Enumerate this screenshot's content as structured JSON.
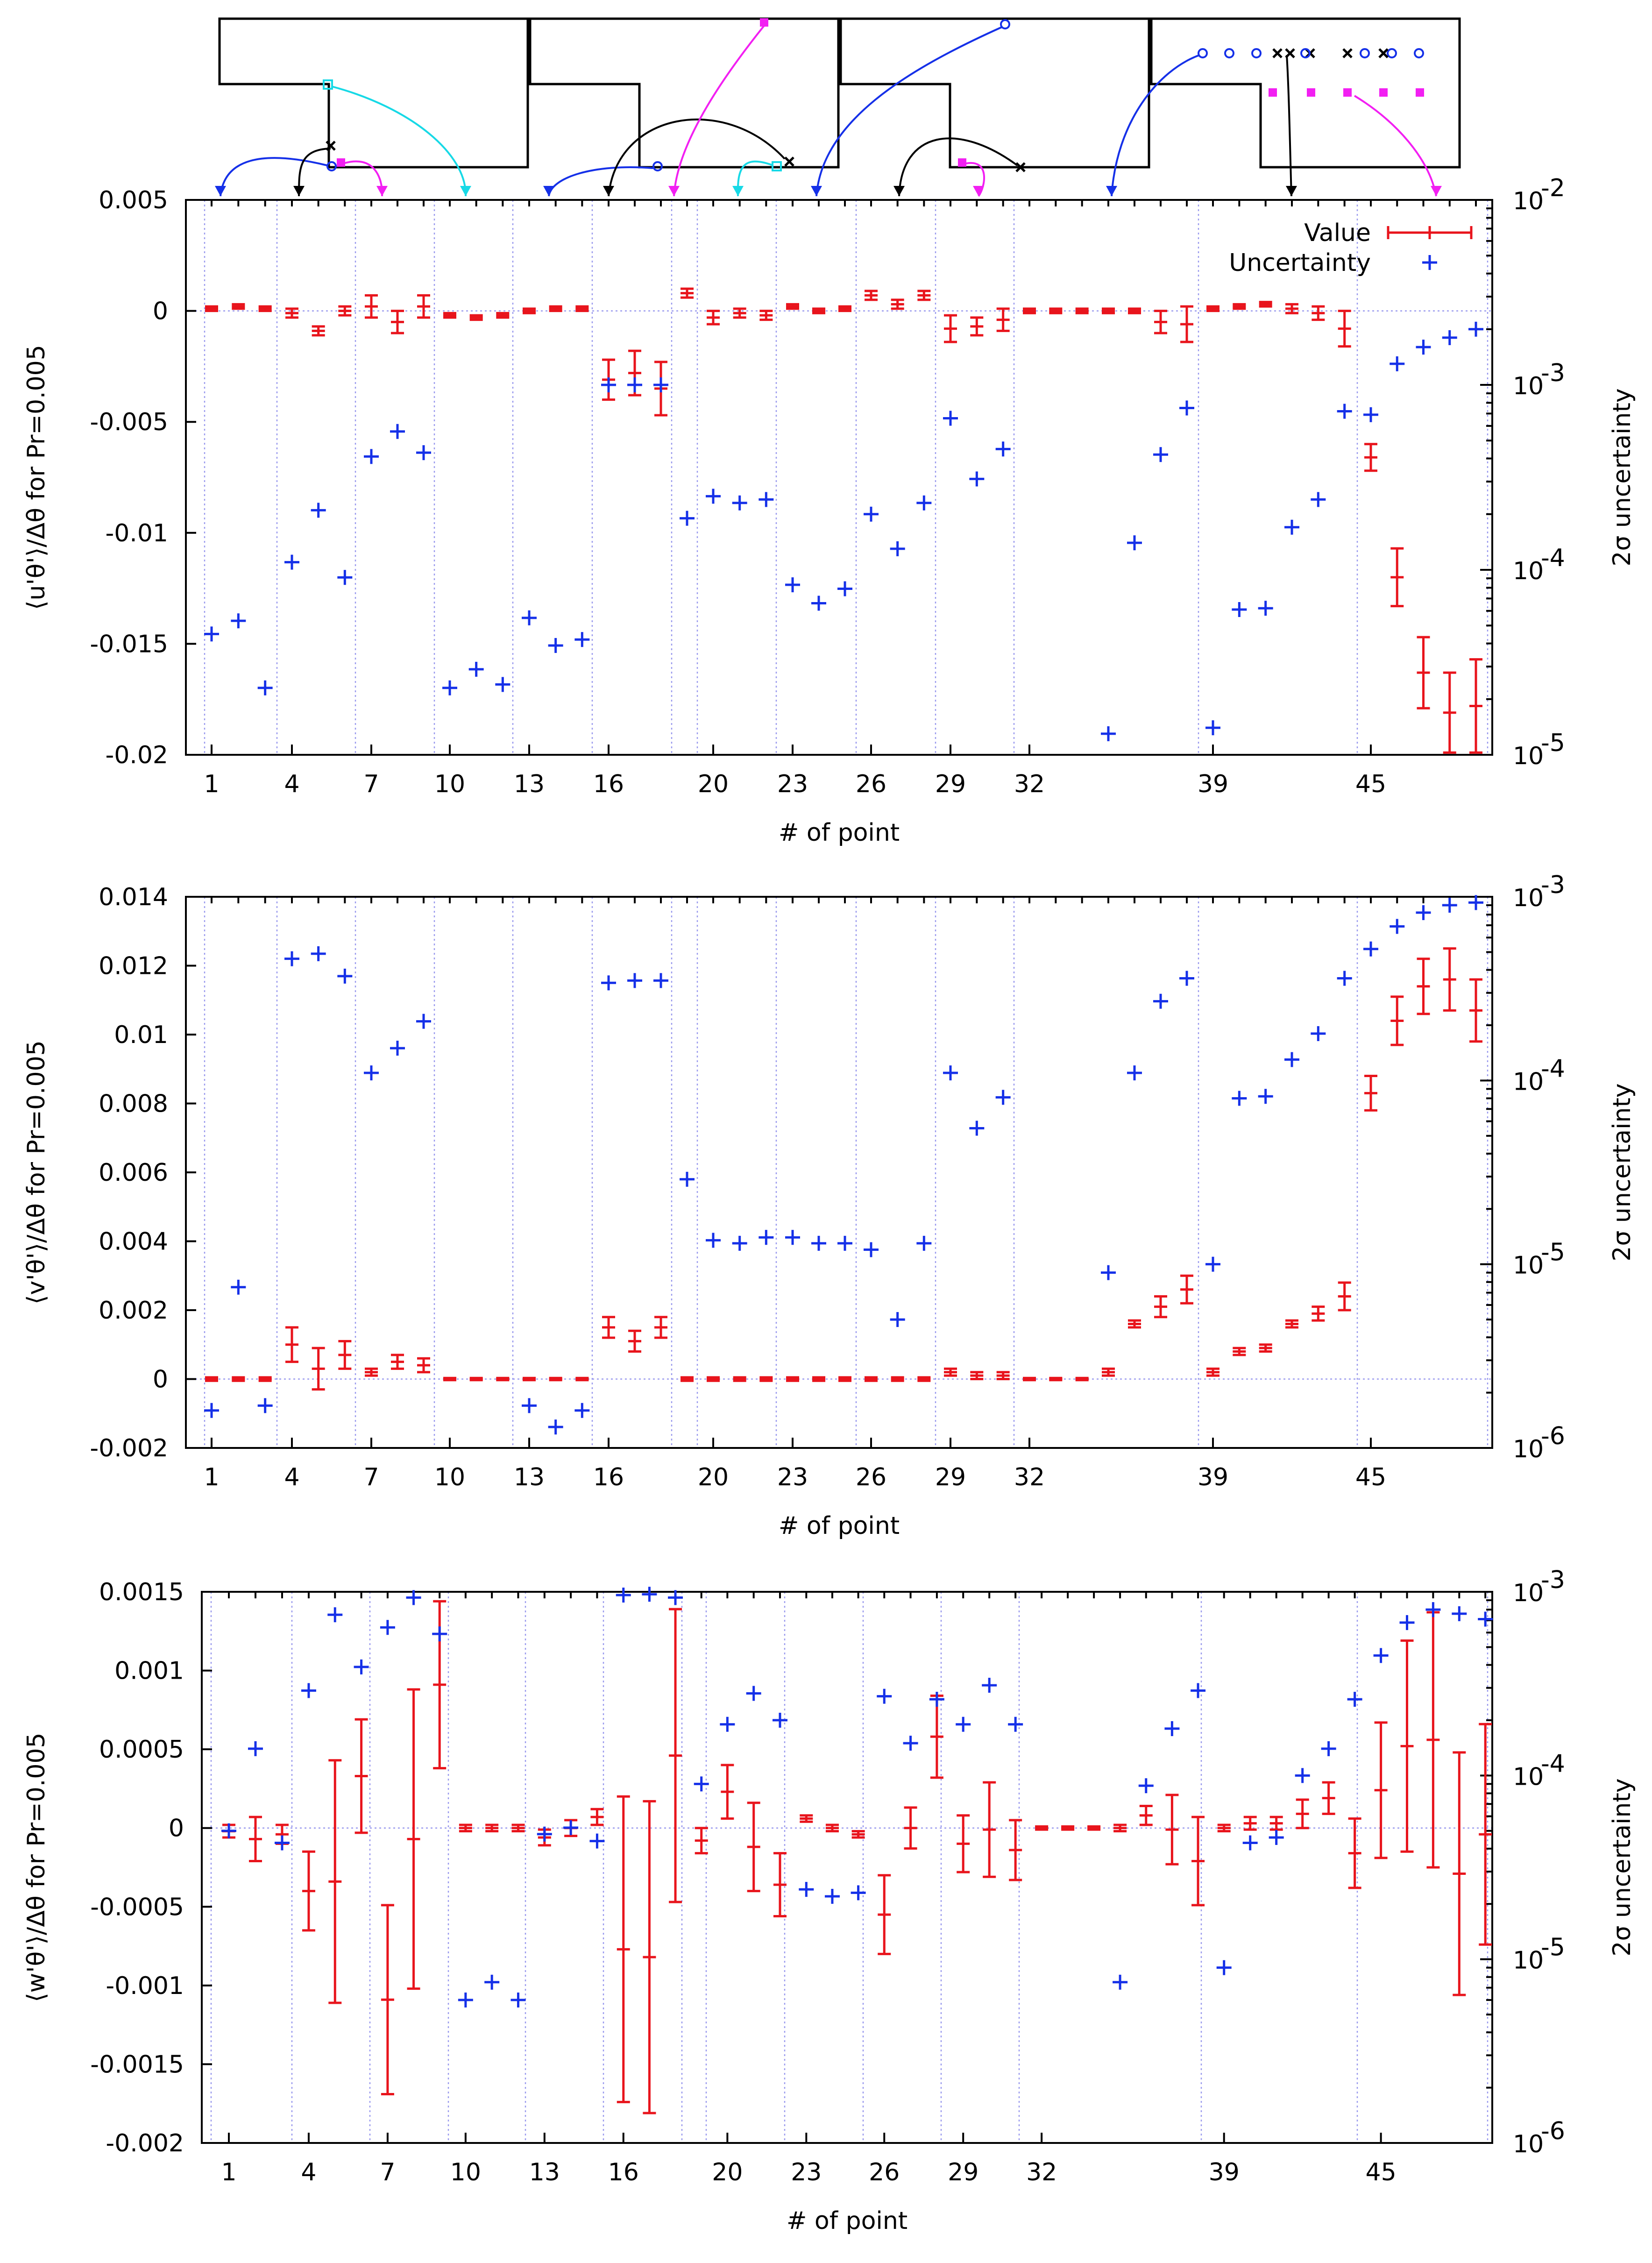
{
  "chart_data": [
    {
      "type": "errorbar-scatter",
      "title": "",
      "xlabel": "# of point",
      "ylabel": "⟨u'θ'⟩/Δθ for Pr=0.005",
      "y2label": "2σ uncertainty",
      "xlim": [
        0.5,
        49.5
      ],
      "ylim": [
        -0.02,
        0.005
      ],
      "y2lim": [
        1e-05,
        0.01
      ],
      "y2scale": "log",
      "xticks": [
        "1",
        "4",
        "7",
        "10",
        "13",
        "16",
        "20",
        "23",
        "26",
        "29",
        "32",
        "39",
        "45"
      ],
      "yticks": [
        "0.005",
        "0",
        "-0.005",
        "-0.01",
        "-0.015",
        "-0.02"
      ],
      "y2ticks": [
        "10",
        "10",
        "10",
        "10"
      ],
      "y2tick_exponents": [
        "-2",
        "-3",
        "-4",
        "-5"
      ],
      "group_boundaries": [
        3.5,
        6.5,
        9.5,
        12.5,
        15.5,
        18.5,
        19.5,
        22.5,
        25.5,
        28.5,
        31.5,
        37.5,
        44.5,
        49.5
      ],
      "legend": [
        "Value",
        "Uncertainty"
      ],
      "series": [
        {
          "name": "Value",
          "x": [
            1,
            2,
            3,
            4,
            5,
            6,
            7,
            8,
            9,
            10,
            11,
            12,
            13,
            14,
            15,
            16,
            17,
            18,
            19,
            20,
            21,
            22,
            23,
            24,
            25,
            26,
            27,
            28,
            29,
            30,
            31,
            32,
            33,
            34,
            35,
            36,
            37,
            38,
            39,
            40,
            41,
            42,
            43,
            44,
            45,
            46,
            47,
            48,
            49
          ],
          "y": [
            0.0001,
            0.0002,
            0.0001,
            -0.0001,
            -0.0009,
            0.0,
            0.0002,
            -0.0005,
            0.0002,
            -0.0002,
            -0.0003,
            -0.0002,
            0.0,
            0.0001,
            0.0001,
            -0.0031,
            -0.0028,
            -0.0035,
            0.0008,
            -0.0003,
            -0.0001,
            -0.0002,
            0.0002,
            0.0,
            0.0001,
            0.0007,
            0.0003,
            0.0007,
            -0.0008,
            -0.0007,
            -0.0004,
            0.0,
            0.0,
            0.0,
            0.0,
            0.0,
            -0.0005,
            -0.0006,
            0.0001,
            0.0002,
            0.0003,
            0.0001,
            -0.0001,
            -0.0008,
            -0.0066,
            -0.012,
            -0.0163,
            -0.0181,
            -0.0178
          ],
          "err": [
            0.0001,
            0.0001,
            0.0001,
            0.0002,
            0.0002,
            0.0002,
            0.0005,
            0.0005,
            0.0005,
            0.0001,
            0.0001,
            0.0001,
            0.0001,
            0.0001,
            0.0001,
            0.0009,
            0.001,
            0.0012,
            0.0002,
            0.0003,
            0.0002,
            0.0002,
            0.0001,
            0.0001,
            0.0001,
            0.0002,
            0.0002,
            0.0002,
            0.0006,
            0.0004,
            0.0005,
            0.0001,
            0.0001,
            0.0001,
            0.0001,
            0.0001,
            0.0005,
            0.0008,
            0.0001,
            0.0001,
            0.0001,
            0.0002,
            0.0003,
            0.0008,
            0.0006,
            0.0013,
            0.0016,
            0.0018,
            0.0021
          ]
        },
        {
          "name": "Uncertainty",
          "x": [
            1,
            2,
            3,
            4,
            5,
            6,
            7,
            8,
            9,
            10,
            11,
            12,
            13,
            14,
            15,
            16,
            17,
            18,
            19,
            20,
            21,
            22,
            23,
            24,
            25,
            26,
            27,
            28,
            29,
            30,
            31,
            32,
            33,
            34,
            35,
            36,
            37,
            38,
            39,
            40,
            41,
            42,
            43,
            44,
            45,
            46,
            47,
            48,
            49
          ],
          "y": [
            4.5e-05,
            5.3e-05,
            2.3e-05,
            0.00011,
            0.00021,
            9.1e-05,
            0.00041,
            0.00056,
            0.00043,
            2.3e-05,
            2.9e-05,
            2.4e-05,
            5.5e-05,
            3.9e-05,
            4.2e-05,
            0.001,
            0.001,
            0.001,
            0.00019,
            0.00025,
            0.00023,
            0.00024,
            8.3e-05,
            6.6e-05,
            7.9e-05,
            0.0002,
            0.00013,
            0.00023,
            0.00066,
            0.00031,
            0.00045,
            null,
            null,
            null,
            1.3e-05,
            0.00014,
            0.00042,
            0.00075,
            1.4e-05,
            6.1e-05,
            6.2e-05,
            0.00017,
            0.00024,
            0.00072,
            0.00069,
            0.0013,
            0.0016,
            0.0018,
            0.002
          ]
        }
      ]
    },
    {
      "type": "errorbar-scatter",
      "title": "",
      "xlabel": "# of point",
      "ylabel": "⟨v'θ'⟩/Δθ for Pr=0.005",
      "y2label": "2σ uncertainty",
      "xlim": [
        0.5,
        49.5
      ],
      "ylim": [
        -0.002,
        0.014
      ],
      "y2lim": [
        1e-06,
        0.001
      ],
      "y2scale": "log",
      "xticks": [
        "1",
        "4",
        "7",
        "10",
        "13",
        "16",
        "20",
        "23",
        "26",
        "29",
        "32",
        "39",
        "45"
      ],
      "yticks": [
        "0.014",
        "0.012",
        "0.01",
        "0.008",
        "0.006",
        "0.004",
        "0.002",
        "0",
        "-0.002"
      ],
      "y2ticks": [
        "10",
        "10",
        "10",
        "10"
      ],
      "y2tick_exponents": [
        "-3",
        "-4",
        "-5",
        "-6"
      ],
      "group_boundaries": [
        3.5,
        6.5,
        9.5,
        12.5,
        15.5,
        18.5,
        19.5,
        22.5,
        25.5,
        28.5,
        31.5,
        37.5,
        44.5,
        49.5
      ],
      "series": [
        {
          "name": "Value",
          "x": [
            1,
            2,
            3,
            4,
            5,
            6,
            7,
            8,
            9,
            10,
            11,
            12,
            13,
            14,
            15,
            16,
            17,
            18,
            19,
            20,
            21,
            22,
            23,
            24,
            25,
            26,
            27,
            28,
            29,
            30,
            31,
            32,
            33,
            34,
            35,
            36,
            37,
            38,
            39,
            40,
            41,
            42,
            43,
            44,
            45,
            46,
            47,
            48,
            49
          ],
          "y": [
            0,
            0,
            0,
            0.001,
            0.0003,
            0.0007,
            0.0002,
            0.0005,
            0.0004,
            0,
            0,
            0,
            0,
            0,
            0,
            0.0015,
            0.0011,
            0.0015,
            0,
            0,
            0,
            0,
            0,
            0,
            0,
            0,
            0,
            0,
            0.0002,
            0.0001,
            0.0001,
            0,
            0,
            0,
            0.0002,
            0.0016,
            0.0021,
            0.0026,
            0.0002,
            0.0008,
            0.0009,
            0.0016,
            0.0019,
            0.0024,
            0.0083,
            0.0104,
            0.0114,
            0.0116,
            0.0107
          ],
          "err": [
            5e-05,
            5e-05,
            5e-05,
            0.0005,
            0.0006,
            0.0004,
            0.0001,
            0.0002,
            0.0002,
            3e-05,
            3e-05,
            3e-05,
            3e-05,
            3e-05,
            3e-05,
            0.0003,
            0.0003,
            0.0003,
            5e-05,
            5e-05,
            5e-05,
            5e-05,
            5e-05,
            5e-05,
            5e-05,
            5e-05,
            5e-05,
            5e-05,
            0.0001,
            0.0001,
            0.0001,
            3e-05,
            3e-05,
            3e-05,
            0.0001,
            0.0001,
            0.0003,
            0.0004,
            0.0001,
            0.0001,
            0.0001,
            0.0001,
            0.0002,
            0.0004,
            0.0005,
            0.0007,
            0.0008,
            0.0009,
            0.0009
          ]
        },
        {
          "name": "Uncertainty",
          "x": [
            1,
            2,
            3,
            4,
            5,
            6,
            7,
            8,
            9,
            10,
            11,
            12,
            13,
            14,
            15,
            16,
            17,
            18,
            19,
            20,
            21,
            22,
            23,
            24,
            25,
            26,
            27,
            28,
            29,
            30,
            31,
            32,
            33,
            34,
            35,
            36,
            37,
            38,
            39,
            40,
            41,
            42,
            43,
            44,
            45,
            46,
            47,
            48,
            49
          ],
          "y": [
            1.6e-06,
            7.5e-06,
            1.7e-06,
            0.00046,
            0.00049,
            0.00037,
            0.00011,
            0.00015,
            0.00021,
            null,
            null,
            null,
            1.7e-06,
            1.3e-06,
            1.6e-06,
            0.00034,
            0.00035,
            0.00035,
            2.9e-05,
            1.35e-05,
            1.3e-05,
            1.4e-05,
            1.4e-05,
            1.3e-05,
            1.3e-05,
            1.2e-05,
            5e-06,
            1.3e-05,
            0.00011,
            5.5e-05,
            8.1e-05,
            null,
            null,
            null,
            9e-06,
            0.00011,
            0.00027,
            0.00036,
            1e-05,
            8e-05,
            8.2e-05,
            0.00013,
            0.00018,
            0.00036,
            0.00052,
            0.00069,
            0.00082,
            0.0009,
            0.00093
          ]
        }
      ]
    },
    {
      "type": "errorbar-scatter",
      "title": "",
      "xlabel": "# of point",
      "ylabel": "⟨w'θ'⟩/Δθ for Pr=0.005",
      "y2label": "2σ uncertainty",
      "xlim": [
        0.5,
        49.5
      ],
      "ylim": [
        -0.002,
        0.0015
      ],
      "y2lim": [
        1e-06,
        0.001
      ],
      "y2scale": "log",
      "xticks": [
        "1",
        "4",
        "7",
        "10",
        "13",
        "16",
        "20",
        "23",
        "26",
        "29",
        "32",
        "39",
        "45"
      ],
      "yticks": [
        "0.0015",
        "0.001",
        "0.0005",
        "0",
        "-0.0005",
        "-0.001",
        "-0.0015",
        "-0.002"
      ],
      "y2ticks": [
        "10",
        "10",
        "10",
        "10"
      ],
      "y2tick_exponents": [
        "-3",
        "-4",
        "-5",
        "-6"
      ],
      "group_boundaries": [
        3.5,
        6.5,
        9.5,
        12.5,
        15.5,
        18.5,
        19.5,
        22.5,
        25.5,
        28.5,
        31.5,
        37.5,
        44.5,
        49.5
      ],
      "series": [
        {
          "name": "Value",
          "x": [
            1,
            2,
            3,
            4,
            5,
            6,
            7,
            8,
            9,
            10,
            11,
            12,
            13,
            14,
            15,
            16,
            17,
            18,
            19,
            20,
            21,
            22,
            23,
            24,
            25,
            26,
            27,
            28,
            29,
            30,
            31,
            32,
            33,
            34,
            35,
            36,
            37,
            38,
            39,
            40,
            41,
            42,
            43,
            44,
            45,
            46,
            47,
            48,
            49
          ],
          "y": [
            -2e-05,
            -7e-05,
            -4e-05,
            -0.0004,
            -0.00034,
            0.00033,
            -0.00109,
            -7e-05,
            0.00091,
            0.0,
            0.0,
            0.0,
            -6e-05,
            0.0,
            7e-05,
            -0.00077,
            -0.00082,
            0.00046,
            -8e-05,
            0.00023,
            -0.00012,
            -0.00036,
            6e-05,
            0.0,
            -4e-05,
            -0.00055,
            0.0,
            0.00058,
            -0.0001,
            -1e-05,
            -0.00014,
            0.0,
            0.0,
            0.0,
            0.0,
            8e-05,
            -1e-05,
            -0.00021,
            0.0,
            3e-05,
            3e-05,
            9e-05,
            0.00019,
            -0.00016,
            0.00024,
            0.00052,
            0.00056,
            -0.00029,
            -4e-05
          ],
          "err": [
            4e-05,
            0.00014,
            6e-05,
            0.00025,
            0.00077,
            0.00036,
            0.0006,
            0.00095,
            0.00053,
            2e-05,
            2e-05,
            2e-05,
            5e-05,
            5e-05,
            5e-05,
            0.00097,
            0.00099,
            0.00093,
            8e-05,
            0.00017,
            0.00028,
            0.0002,
            2e-05,
            2e-05,
            2e-05,
            0.00025,
            0.00013,
            0.00026,
            0.00018,
            0.0003,
            0.00019,
            1e-05,
            1e-05,
            1e-05,
            2e-05,
            6e-05,
            0.00022,
            0.00028,
            2e-05,
            4e-05,
            4e-05,
            9e-05,
            0.0001,
            0.00022,
            0.00043,
            0.00067,
            0.00081,
            0.00077,
            0.0007
          ]
        },
        {
          "name": "Uncertainty",
          "x": [
            1,
            2,
            3,
            4,
            5,
            6,
            7,
            8,
            9,
            10,
            11,
            12,
            13,
            14,
            15,
            16,
            17,
            18,
            19,
            20,
            21,
            22,
            23,
            24,
            25,
            26,
            27,
            28,
            29,
            30,
            31,
            32,
            33,
            34,
            35,
            36,
            37,
            38,
            39,
            40,
            41,
            42,
            43,
            44,
            45,
            46,
            47,
            48,
            49
          ],
          "y": [
            5e-05,
            0.00014,
            4.3e-05,
            0.00029,
            0.00075,
            0.00039,
            0.00064,
            0.00093,
            0.00059,
            6e-06,
            7.5e-06,
            6e-06,
            4.8e-05,
            5.2e-05,
            4.4e-05,
            0.00096,
            0.00097,
            0.00093,
            9e-05,
            0.00019,
            0.00028,
            0.0002,
            2.4e-05,
            2.2e-05,
            2.3e-05,
            0.00027,
            0.00015,
            0.00026,
            0.00019,
            0.00031,
            0.00019,
            null,
            null,
            null,
            7.5e-06,
            8.8e-05,
            0.00018,
            0.00029,
            9e-06,
            4.3e-05,
            4.6e-05,
            0.0001,
            0.00014,
            0.00026,
            0.00045,
            0.00068,
            0.0008,
            0.00076,
            0.00071
          ]
        }
      ]
    }
  ],
  "diagrams": {
    "count": 4,
    "marker_colors": {
      "value": "#e8141c",
      "uncertainty": "#1530e8",
      "black": "#000000",
      "cyan": "#17d9e6",
      "magenta": "#f21ff2",
      "blue": "#1530e8"
    }
  }
}
